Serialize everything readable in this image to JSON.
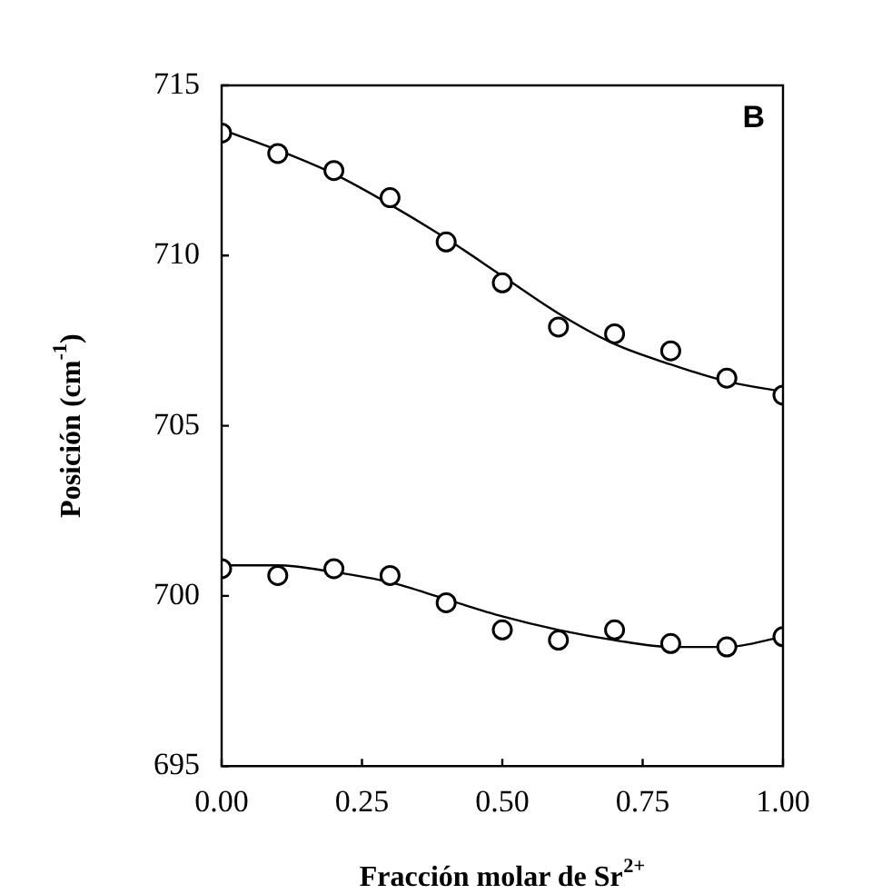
{
  "chart_data": {
    "type": "scatter",
    "xlabel": "Fracción molar de Sr$^{2+}$",
    "ylabel": "Posición (cm$^{-1}$)",
    "annotations": [
      "B"
    ],
    "xlim": [
      0,
      1
    ],
    "ylim": [
      695,
      715
    ],
    "xticks": [
      {
        "value": 0,
        "label": "0.00"
      },
      {
        "value": 0.25,
        "label": "0.25"
      },
      {
        "value": 0.5,
        "label": "0.50"
      },
      {
        "value": 0.75,
        "label": "0.75"
      },
      {
        "value": 1,
        "label": "1.00"
      }
    ],
    "yticks": [
      695,
      700,
      705,
      710,
      715
    ],
    "grid": false,
    "legend": false,
    "marker": "circle",
    "x": [
      0,
      0.1,
      0.2,
      0.3,
      0.4,
      0.5,
      0.6,
      0.7,
      0.8,
      0.9,
      1.0
    ],
    "series": [
      {
        "color": "#000000",
        "values": [
          713.6,
          713.0,
          712.5,
          711.7,
          710.4,
          709.2,
          707.9,
          707.7,
          707.2,
          706.4,
          705.9
        ]
      },
      {
        "color": "#000000",
        "values": [
          700.8,
          700.6,
          700.8,
          700.6,
          699.8,
          699.0,
          698.7,
          699.0,
          698.6,
          698.5,
          698.8
        ]
      },
      {
        "type": "line",
        "marker": "none",
        "color": "#000000",
        "x": [
          0,
          0.1,
          0.2,
          0.3,
          0.4,
          0.5,
          0.6,
          0.7,
          0.8,
          0.9,
          1.0
        ],
        "values": [
          713.7,
          713.1,
          712.4,
          711.5,
          710.5,
          709.4,
          708.3,
          707.4,
          706.8,
          706.3,
          706.0
        ]
      },
      {
        "type": "line",
        "marker": "none",
        "color": "#000000",
        "x": [
          0,
          0.1,
          0.2,
          0.3,
          0.4,
          0.5,
          0.6,
          0.7,
          0.8,
          0.9,
          1.0
        ],
        "values": [
          700.9,
          700.9,
          700.7,
          700.4,
          699.9,
          699.4,
          699.0,
          698.7,
          698.5,
          698.5,
          698.8
        ]
      }
    ]
  }
}
